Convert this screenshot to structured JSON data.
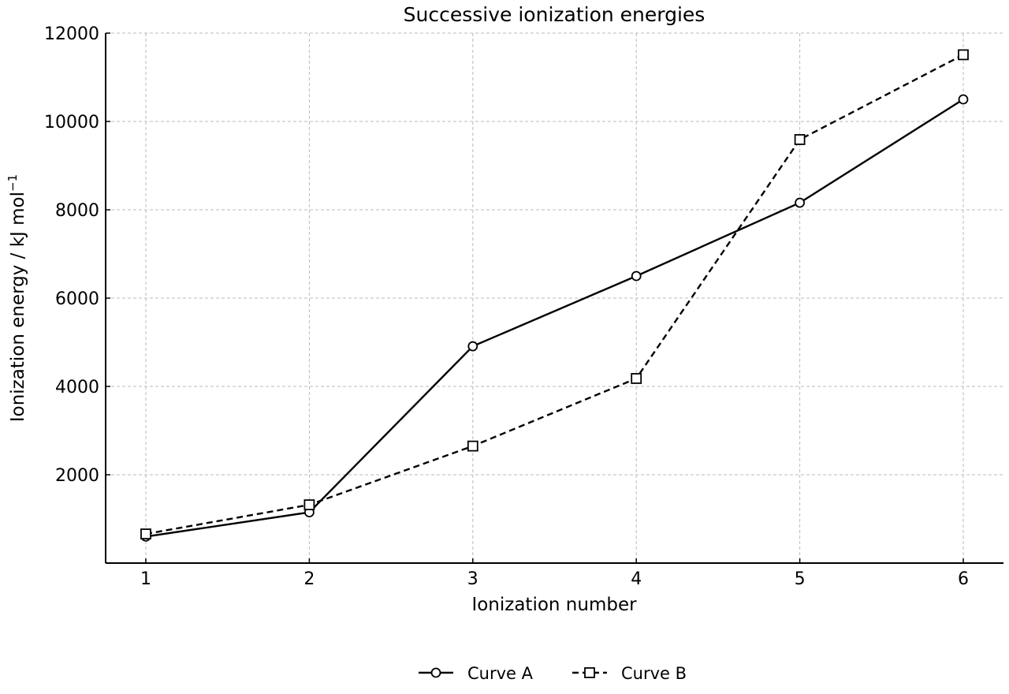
{
  "chart_data": {
    "type": "line",
    "title": "Successive ionization energies",
    "xlabel": "Ionization number",
    "ylabel": "Ionization energy / kJ mol",
    "ylabel_unit_superscript": "−1",
    "x": [
      1,
      2,
      3,
      4,
      5,
      6
    ],
    "xlim": [
      0.75,
      6.25
    ],
    "ylim": [
      0,
      12000
    ],
    "xticks": [
      "1",
      "2",
      "3",
      "4",
      "5",
      "6"
    ],
    "yticks": [
      "2000",
      "4000",
      "6000",
      "8000",
      "10000",
      "12000"
    ],
    "grid": true,
    "legend_position": "bottom-center",
    "series": [
      {
        "name": "Curve A",
        "values": [
          600,
          1150,
          4910,
          6500,
          8160,
          10500
        ],
        "marker": "circle",
        "line_style": "solid",
        "color": "#000000"
      },
      {
        "name": "Curve B",
        "values": [
          660,
          1320,
          2650,
          4180,
          9590,
          11510
        ],
        "marker": "square",
        "line_style": "dashed",
        "color": "#000000"
      }
    ]
  }
}
